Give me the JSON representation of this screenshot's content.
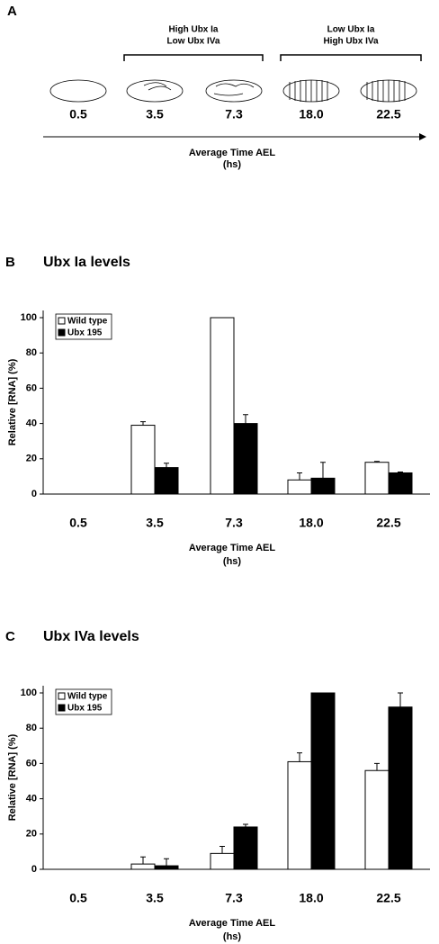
{
  "panel_a": {
    "label": "A",
    "groups": [
      {
        "lines": [
          "High Ubx Ia",
          "Low Ubx IVa"
        ]
      },
      {
        "lines": [
          "Low Ubx Ia",
          "High Ubx IVa"
        ]
      }
    ],
    "times": [
      "0.5",
      "3.5",
      "7.3",
      "18.0",
      "22.5"
    ],
    "axis_label": [
      "Average Time AEL",
      "(hs)"
    ]
  },
  "chart_data": [
    {
      "type": "bar",
      "panel_label": "B",
      "title": "Ubx Ia levels",
      "categories": [
        "0.5",
        "3.5",
        "7.3",
        "18.0",
        "22.5"
      ],
      "series": [
        {
          "name": "Wild type",
          "color": "#ffffff",
          "values": [
            0,
            39,
            100,
            8,
            18
          ],
          "errors": [
            null,
            2,
            null,
            4,
            0.5
          ]
        },
        {
          "name": "Ubx 195",
          "color": "#000000",
          "values": [
            0,
            15,
            40,
            9,
            12
          ],
          "errors": [
            null,
            2.5,
            5,
            9,
            0.5
          ]
        }
      ],
      "ylim": [
        0,
        100
      ],
      "yticks": [
        0,
        20,
        40,
        60,
        80,
        100
      ],
      "ylabel": "Relative [RNA] (%)",
      "xlabel": [
        "Average Time AEL",
        "(hs)"
      ],
      "legend": "top-left"
    },
    {
      "type": "bar",
      "panel_label": "C",
      "title": "Ubx IVa levels",
      "categories": [
        "0.5",
        "3.5",
        "7.3",
        "18.0",
        "22.5"
      ],
      "series": [
        {
          "name": "Wild type",
          "color": "#ffffff",
          "values": [
            0,
            3,
            9,
            61,
            56
          ],
          "errors": [
            null,
            4,
            4,
            5,
            4
          ]
        },
        {
          "name": "Ubx 195",
          "color": "#000000",
          "values": [
            0,
            2,
            24,
            100,
            92
          ],
          "errors": [
            null,
            4,
            1.5,
            null,
            8
          ]
        }
      ],
      "ylim": [
        0,
        100
      ],
      "yticks": [
        0,
        20,
        40,
        60,
        80,
        100
      ],
      "ylabel": "Relative [RNA] (%)",
      "xlabel": [
        "Average Time AEL",
        "(hs)"
      ],
      "legend": "top-left"
    }
  ]
}
